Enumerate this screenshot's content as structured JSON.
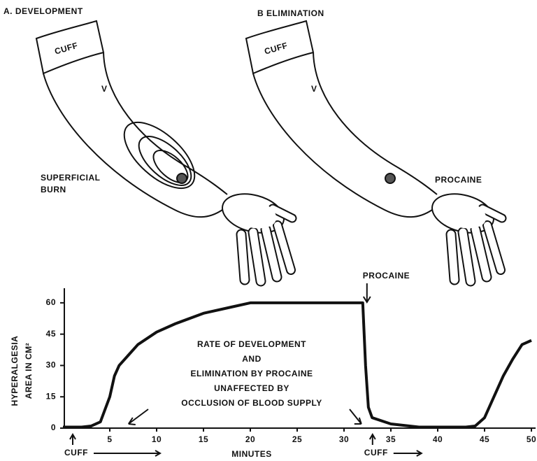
{
  "panels": [
    {
      "title": "A. DEVELOPMENT",
      "cuff": "CUFF",
      "mark": "V",
      "label": [
        "SUPERFICIAL",
        "BURN"
      ]
    },
    {
      "title": "B ELIMINATION",
      "cuff": "CUFF",
      "mark": "V",
      "label": [
        "PROCAINE"
      ]
    }
  ],
  "chart_data": {
    "type": "line",
    "color": "#111111",
    "x": [
      0,
      2,
      3,
      4,
      5,
      5.5,
      6,
      7,
      8,
      10,
      12,
      15,
      18,
      20,
      25,
      30,
      32,
      32.3,
      32.6,
      33,
      35,
      38,
      43,
      44,
      45,
      46,
      47,
      48,
      49,
      50
    ],
    "values": [
      0.5,
      0.5,
      1,
      3,
      15,
      25,
      30,
      35,
      40,
      46,
      50,
      55,
      58,
      60,
      60,
      60,
      60,
      30,
      10,
      5,
      2,
      0.5,
      0.5,
      1,
      5,
      15,
      25,
      33,
      40,
      42
    ],
    "xlim": [
      0,
      50
    ],
    "xticks": [
      5,
      10,
      15,
      20,
      25,
      30,
      35,
      40,
      45,
      50
    ],
    "ylim": [
      0,
      67
    ],
    "yticks": [
      0,
      15,
      30,
      45,
      60
    ],
    "x_label": "MINUTES",
    "y_label": [
      "HYPERALGESIA",
      "AREA IN CM²"
    ],
    "annotation_lines": [
      "RATE OF DEVELOPMENT",
      "AND",
      "ELIMINATION BY PROCAINE",
      "UNAFFECTED BY",
      "OCCLUSION OF BLOOD SUPPLY"
    ],
    "events": [
      {
        "label": "CUFF",
        "x": 0
      },
      {
        "label": "CUFF",
        "x": 32
      }
    ],
    "procaine": {
      "label": "PROCAINE",
      "x": 32
    }
  }
}
